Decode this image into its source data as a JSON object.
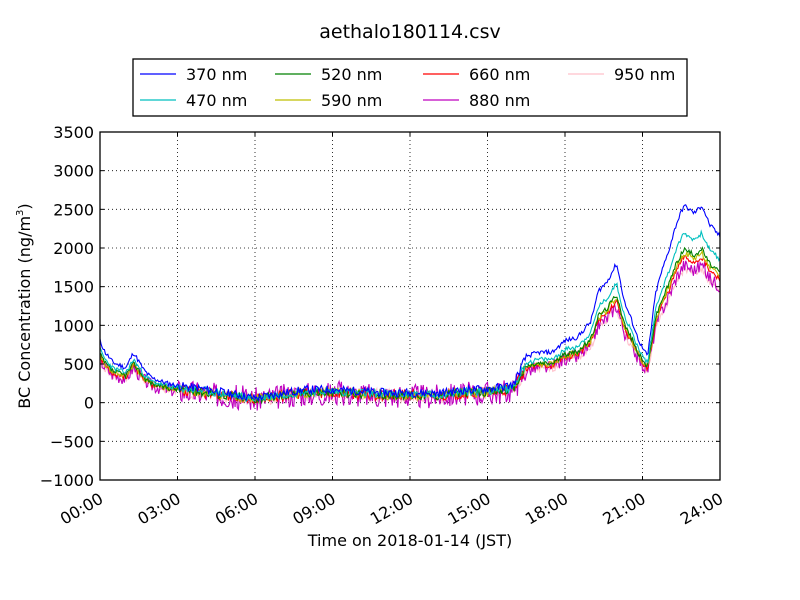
{
  "chart_data": {
    "type": "line",
    "title": "aethalo180114.csv",
    "xlabel": "Time on 2018-01-14 (JST)",
    "ylabel_main": "BC Concentration (ng/m",
    "ylabel_sup": "3",
    "ylabel_end": ")",
    "xlim": [
      0,
      24
    ],
    "ylim": [
      -1000,
      3500
    ],
    "x_ticks": [
      0,
      3,
      6,
      9,
      12,
      15,
      18,
      21,
      24
    ],
    "x_tick_labels": [
      "00:00",
      "03:00",
      "06:00",
      "09:00",
      "12:00",
      "15:00",
      "18:00",
      "21:00",
      "24:00"
    ],
    "y_ticks": [
      -1000,
      -500,
      0,
      500,
      1000,
      1500,
      2000,
      2500,
      3000,
      3500
    ],
    "y_tick_labels": [
      "−1000",
      "−500",
      "0",
      "500",
      "1000",
      "1500",
      "2000",
      "2500",
      "3000",
      "3500"
    ],
    "grid": true,
    "legend_position": "top-center",
    "legend_columns": 4,
    "base_profile": {
      "x": [
        0,
        0.2,
        0.5,
        1,
        1.3,
        1.7,
        2,
        2.5,
        3,
        3.5,
        4,
        5,
        6,
        7,
        8,
        9,
        10,
        11,
        12,
        13,
        14,
        15,
        15.5,
        16,
        16.5,
        17,
        17.5,
        18,
        18.5,
        19,
        19.3,
        19.6,
        20,
        20.3,
        20.6,
        20.8,
        21,
        21.2,
        21.5,
        21.7,
        22,
        22.3,
        22.6,
        23,
        23.3,
        23.6,
        24
      ],
      "y": [
        800,
        650,
        520,
        450,
        650,
        420,
        320,
        260,
        220,
        200,
        180,
        120,
        60,
        120,
        170,
        170,
        150,
        130,
        130,
        120,
        160,
        180,
        200,
        230,
        600,
        650,
        650,
        800,
        850,
        1050,
        1450,
        1550,
        1800,
        1300,
        1050,
        850,
        700,
        600,
        1400,
        1650,
        1950,
        2300,
        2550,
        2450,
        2550,
        2300,
        2150
      ]
    },
    "series": [
      {
        "name": "370 nm",
        "color": "#0000ff",
        "scale": 1.0,
        "noise": 55,
        "seed": 11
      },
      {
        "name": "470 nm",
        "color": "#00bfbf",
        "scale": 0.86,
        "noise": 55,
        "seed": 23
      },
      {
        "name": "520 nm",
        "color": "#008000",
        "scale": 0.78,
        "noise": 60,
        "seed": 37
      },
      {
        "name": "590 nm",
        "color": "#bfbf00",
        "scale": 0.76,
        "noise": 65,
        "seed": 41
      },
      {
        "name": "660 nm",
        "color": "#ff0000",
        "scale": 0.74,
        "noise": 70,
        "seed": 53
      },
      {
        "name": "880 nm",
        "color": "#bf00bf",
        "scale": 0.7,
        "noise": 160,
        "seed": 67
      },
      {
        "name": "950 nm",
        "color": "#ffc0cb",
        "scale": 0.68,
        "noise": 95,
        "seed": 79
      }
    ]
  }
}
